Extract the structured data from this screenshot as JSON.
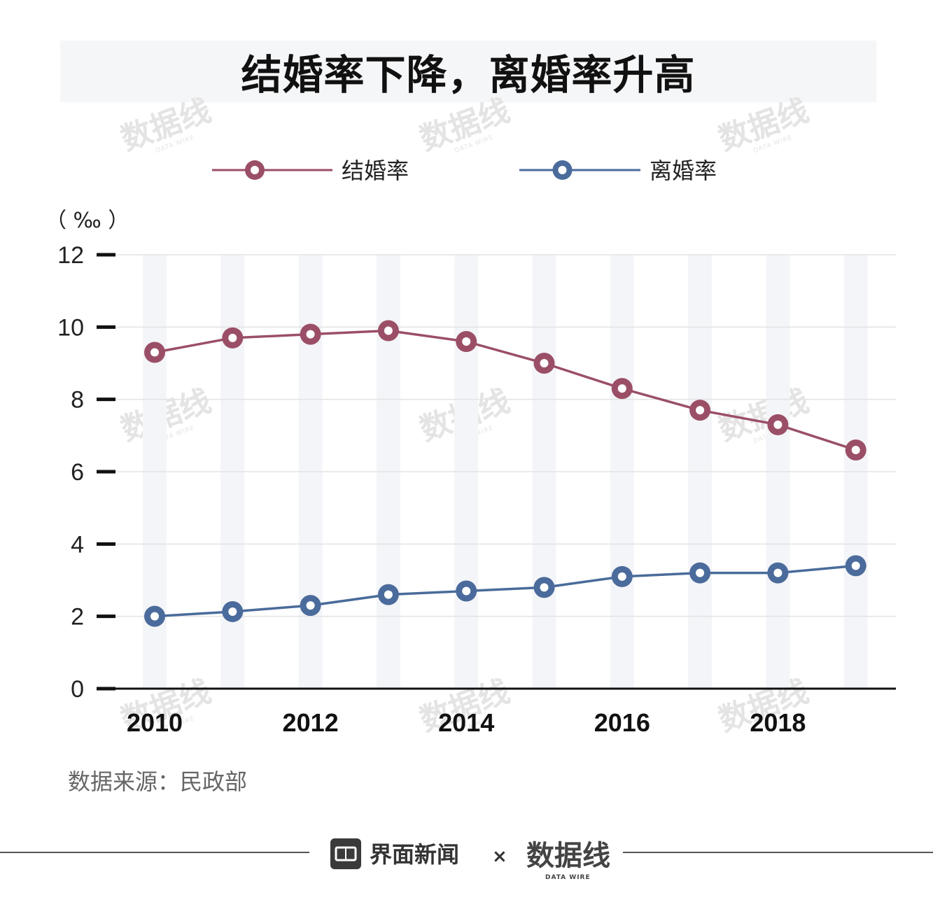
{
  "title": "结婚率下降，离婚率升高",
  "unit_label": "（ ‰ ）",
  "source": "数据来源：民政部",
  "footer": {
    "brand1": "界面新闻",
    "separator": "×",
    "brand2": "数据线",
    "brand2_sub": "DATA WIRE"
  },
  "watermark": {
    "text": "数据线",
    "sub": "DATA WIRE"
  },
  "chart_data": {
    "type": "line",
    "x": [
      2010,
      2011,
      2012,
      2013,
      2014,
      2015,
      2016,
      2017,
      2018,
      2019
    ],
    "xtick_labels": [
      "2010",
      "2012",
      "2014",
      "2016",
      "2018"
    ],
    "ylim": [
      0,
      12
    ],
    "yticks": [
      0,
      2,
      4,
      6,
      8,
      10,
      12
    ],
    "ylabel": "（ ‰ ）",
    "grid": true,
    "legend_position": "top-center",
    "series": [
      {
        "name": "结婚率",
        "color": "#9b4f67",
        "values": [
          9.3,
          9.7,
          9.8,
          9.9,
          9.6,
          9.0,
          8.3,
          7.7,
          7.3,
          6.6
        ]
      },
      {
        "name": "离婚率",
        "color": "#4a6b9b",
        "values": [
          2.0,
          2.13,
          2.3,
          2.6,
          2.7,
          2.8,
          3.1,
          3.2,
          3.2,
          3.4
        ]
      }
    ]
  }
}
